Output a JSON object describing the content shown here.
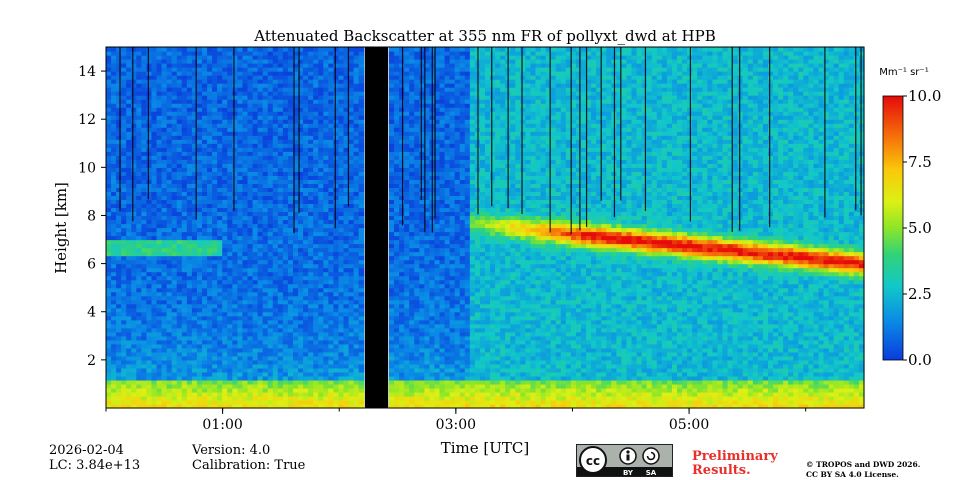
{
  "chart_data": {
    "type": "heatmap",
    "title": "Attenuated Backscatter at 355 nm FR of pollyxt_dwd at HPB",
    "xlabel": "Time [UTC]",
    "ylabel": "Height [km]",
    "x_range_hours": [
      0.0,
      6.5
    ],
    "ylim_km": [
      0,
      15
    ],
    "x_ticks": [
      1,
      3,
      5
    ],
    "x_tick_labels": [
      "01:00",
      "03:00",
      "05:00"
    ],
    "y_ticks": [
      2,
      4,
      6,
      8,
      10,
      12,
      14
    ],
    "y_tick_labels": [
      "2",
      "4",
      "6",
      "8",
      "10",
      "12",
      "14"
    ],
    "colorbar": {
      "unit_label": "Mm⁻¹ sr⁻¹",
      "vmin": 0.0,
      "vmax": 10.0,
      "ticks": [
        0.0,
        2.5,
        5.0,
        7.5,
        10.0
      ],
      "tick_labels": [
        "0.0",
        "2.5",
        "5.0",
        "7.5",
        "10.0"
      ]
    },
    "missing_data_interval_hours": [
      2.22,
      2.42
    ],
    "aerosol_layer": {
      "start_hours": 3.1,
      "end_hours": 6.5,
      "height_start_km": 7.7,
      "height_end_km": 6.0,
      "peak_value": 10.0
    },
    "boundary_layer_top_km": 1.2
  },
  "footer": {
    "date": "2026-02-04",
    "lc": "LC: 3.84e+13",
    "version": "Version: 4.0",
    "calibration": "Calibration: True",
    "preliminary_line1": "Preliminary",
    "preliminary_line2": "Results.",
    "copyright_line1": "© TROPOS and DWD 2026.",
    "copyright_line2": "CC BY SA 4.0 License.",
    "cc_text": "cc",
    "by_text": "BY",
    "sa_text": "SA"
  }
}
